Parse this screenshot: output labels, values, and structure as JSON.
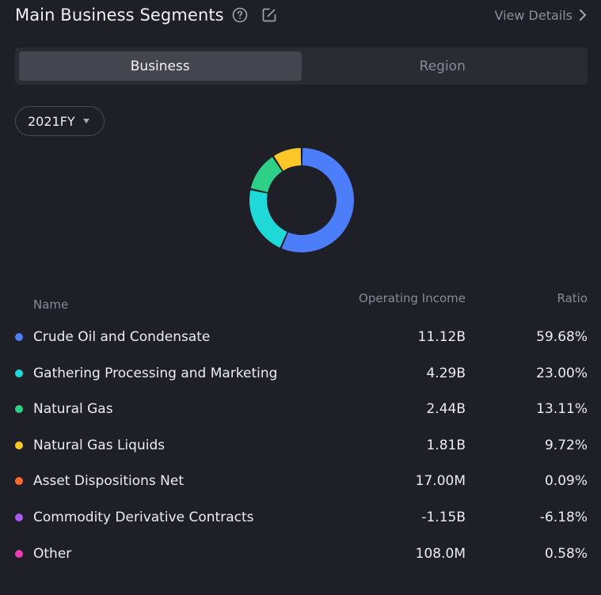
{
  "header": {
    "title": "Main Business Segments",
    "view_details": "View Details"
  },
  "tabs": [
    {
      "label": "Business",
      "active": true
    },
    {
      "label": "Region",
      "active": false
    }
  ],
  "period": {
    "selected": "2021FY"
  },
  "table": {
    "headers": {
      "name": "Name",
      "income": "Operating Income",
      "ratio": "Ratio"
    },
    "rows": [
      {
        "name": "Crude Oil and Condensate",
        "income": "11.12B",
        "ratio": "59.68%",
        "color": "#4c7dfa"
      },
      {
        "name": "Gathering Processing and Marketing",
        "income": "4.29B",
        "ratio": "23.00%",
        "color": "#1fd8d8"
      },
      {
        "name": "Natural Gas",
        "income": "2.44B",
        "ratio": "13.11%",
        "color": "#2ecf86"
      },
      {
        "name": "Natural Gas Liquids",
        "income": "1.81B",
        "ratio": "9.72%",
        "color": "#ffc62a"
      },
      {
        "name": "Asset Dispositions Net",
        "income": "17.00M",
        "ratio": "0.09%",
        "color": "#ff6a2e"
      },
      {
        "name": "Commodity Derivative Contracts",
        "income": "-1.15B",
        "ratio": "-6.18%",
        "color": "#a85cf0"
      },
      {
        "name": "Other",
        "income": "108.0M",
        "ratio": "0.58%",
        "color": "#e93fb4"
      }
    ]
  },
  "chart_data": {
    "type": "pie",
    "categories": [
      "Crude Oil and Condensate",
      "Gathering Processing and Marketing",
      "Natural Gas",
      "Natural Gas Liquids"
    ],
    "values": [
      59.68,
      23.0,
      13.11,
      9.72
    ],
    "colors": [
      "#4c7dfa",
      "#1fd8d8",
      "#2ecf86",
      "#ffc62a"
    ]
  },
  "icons": {
    "help": "question-circle-icon",
    "edit": "edit-icon",
    "chevron": "chevron-right-icon",
    "caret": "caret-down-icon"
  }
}
